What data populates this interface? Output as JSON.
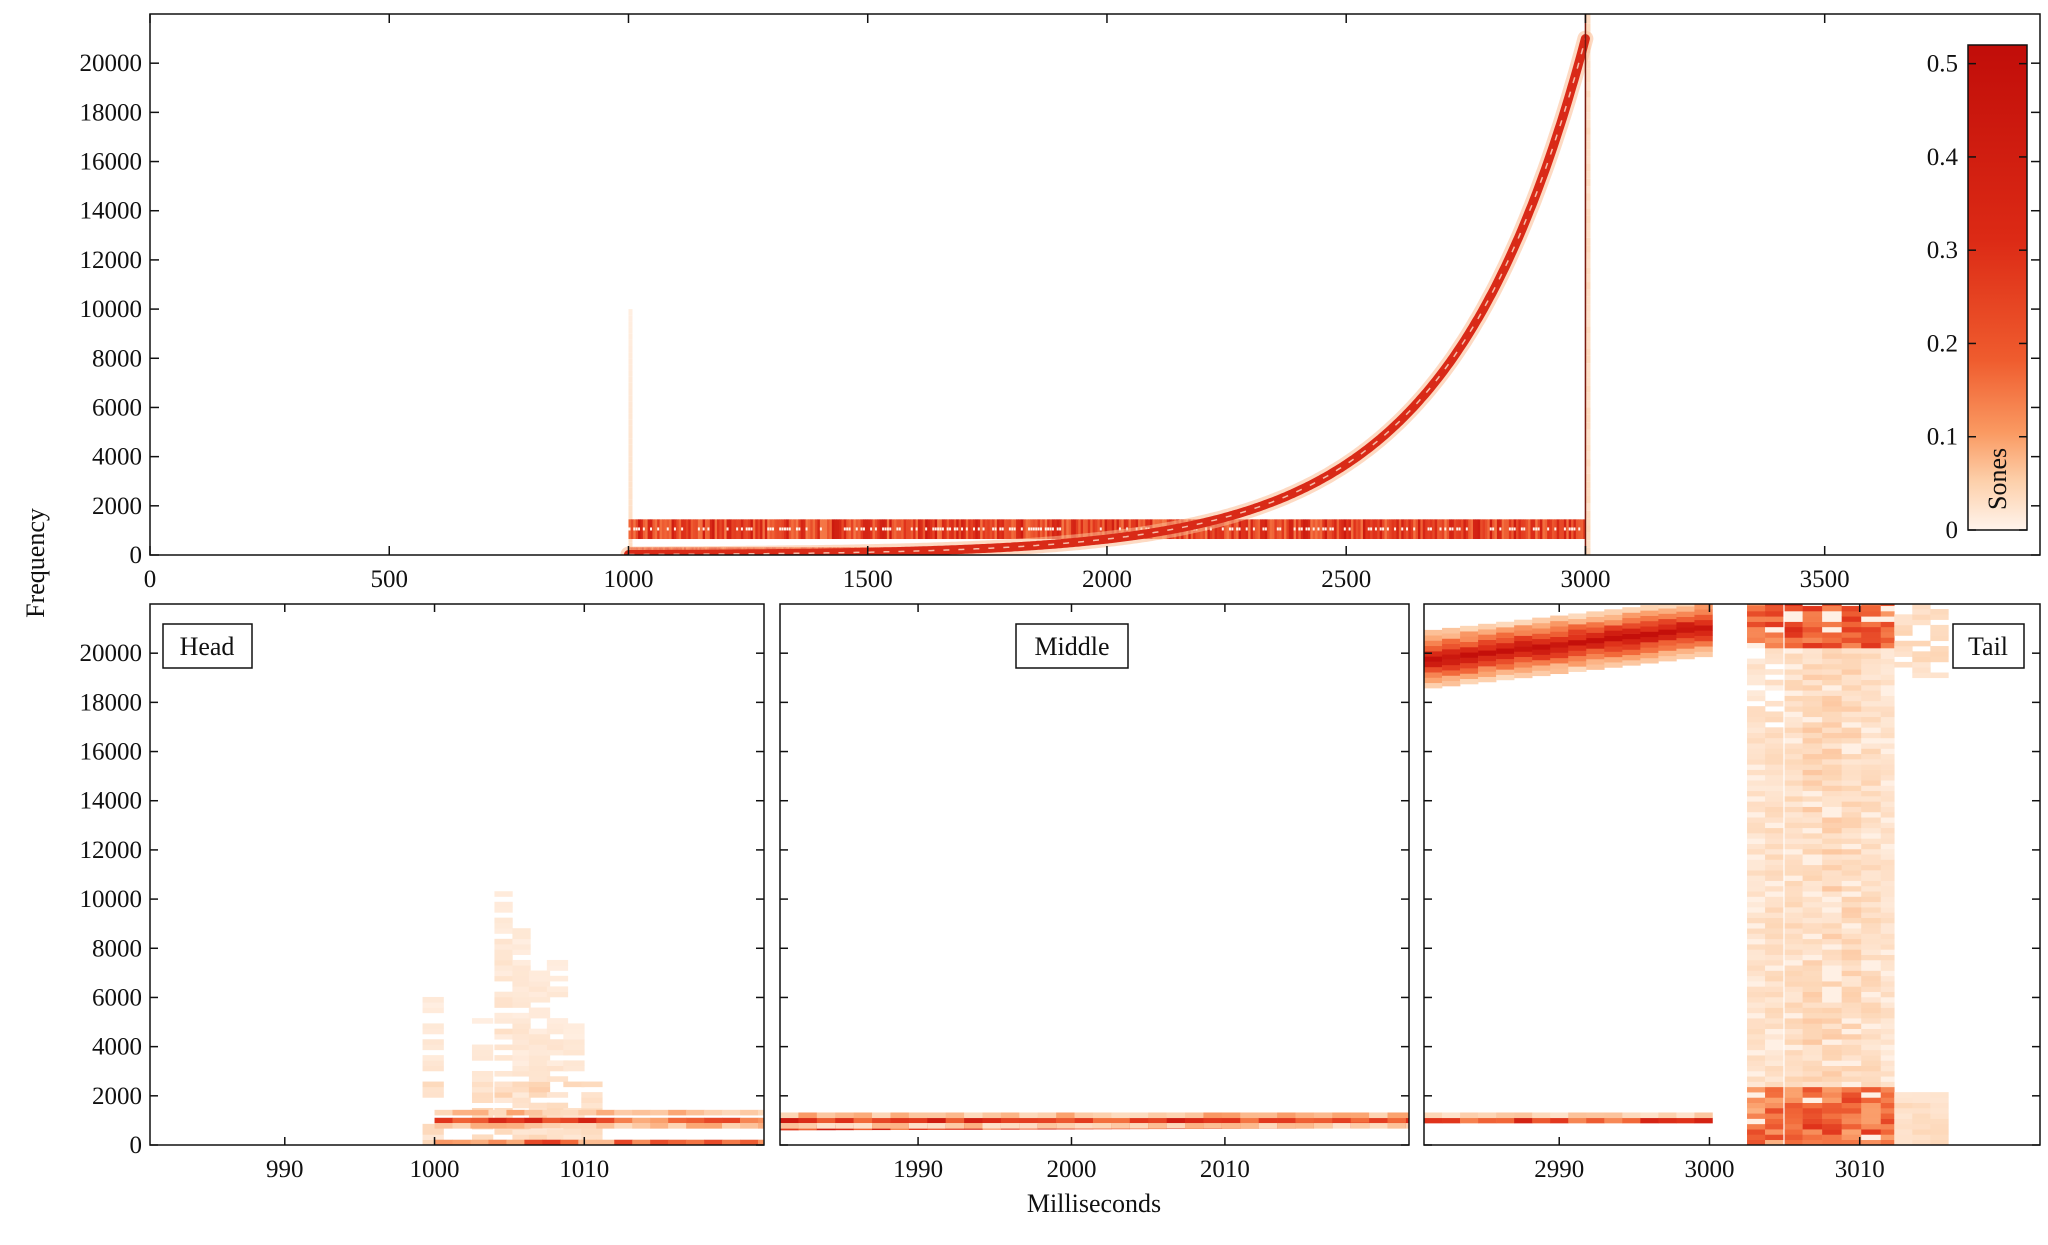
{
  "colors": {
    "scale": [
      "#fff1e6",
      "#fdd5b4",
      "#fba36f",
      "#f26a3a",
      "#e0331b",
      "#c40f0a"
    ],
    "frame": "#111111"
  },
  "chart_data": [
    {
      "id": "overview",
      "type": "heatmap",
      "xlabel": "",
      "ylabel": "Frequency",
      "xlim": [
        0,
        3950
      ],
      "ylim": [
        0,
        22000
      ],
      "xticks": [
        0,
        500,
        1000,
        1500,
        2000,
        2500,
        3000,
        3500
      ],
      "yticks": [
        0,
        2000,
        4000,
        6000,
        8000,
        10000,
        12000,
        14000,
        16000,
        18000,
        20000
      ],
      "colorbar": {
        "label": "Sones",
        "range": [
          0,
          0.52
        ],
        "ticks": [
          0,
          0.1,
          0.2,
          0.3,
          0.4,
          0.5
        ],
        "position": "top-right"
      },
      "components": [
        {
          "kind": "constant_tone",
          "t_start": 1000,
          "t_end": 3000,
          "freq": 1000,
          "level": 0.5
        },
        {
          "kind": "exponential_sweep",
          "t_start": 1000,
          "t_end": 3000,
          "f_start": 20,
          "f_end": 21000,
          "level": 0.5
        },
        {
          "kind": "onset_click",
          "t": 1000,
          "f_max": 10000,
          "level": 0.05
        },
        {
          "kind": "offset_click",
          "t": 3000,
          "f_max": 22000,
          "level": 0.08
        }
      ]
    },
    {
      "id": "head",
      "type": "heatmap",
      "label": "Head",
      "xlim": [
        981,
        1022
      ],
      "ylim": [
        0,
        22000
      ],
      "xticks": [
        990,
        1000,
        1010
      ],
      "yticks": [
        0,
        2000,
        4000,
        6000,
        8000,
        10000,
        12000,
        14000,
        16000,
        18000,
        20000
      ],
      "ylabel": ""
    },
    {
      "id": "middle",
      "type": "heatmap",
      "label": "Middle",
      "xlim": [
        1981,
        2022
      ],
      "ylim": [
        0,
        22000
      ],
      "xticks": [
        1990,
        2000,
        2010
      ],
      "xlabel": "Milliseconds"
    },
    {
      "id": "tail",
      "type": "heatmap",
      "label": "Tail",
      "xlim": [
        2981,
        3022
      ],
      "ylim": [
        0,
        22000
      ],
      "xticks": [
        2990,
        3000,
        3010
      ]
    }
  ]
}
